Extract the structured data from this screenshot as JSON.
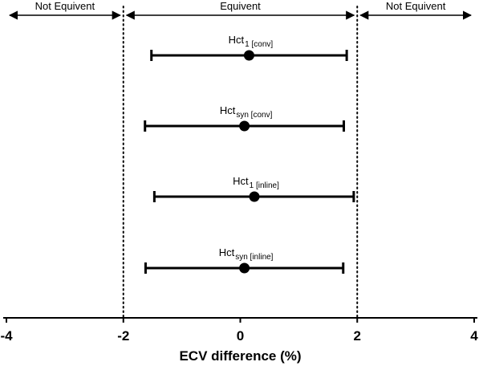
{
  "chart_data": {
    "type": "forest",
    "xlabel": "ECV difference (%)",
    "xlim": [
      -4,
      4
    ],
    "xticks": [
      -4,
      -2,
      0,
      2,
      4
    ],
    "equivalence_margins": [
      -2,
      2
    ],
    "regions": [
      {
        "label": "Not Equivent",
        "from": -4,
        "to": -2
      },
      {
        "label": "Equivent",
        "from": -2,
        "to": 2
      },
      {
        "label": "Not Equivent",
        "from": 2,
        "to": 4
      }
    ],
    "series": [
      {
        "main": "Hct",
        "sub": "1 [conv]",
        "estimate": 0.15,
        "lower": -1.52,
        "upper": 1.82
      },
      {
        "main": "Hct",
        "sub": "syn [conv]",
        "estimate": 0.07,
        "lower": -1.63,
        "upper": 1.77
      },
      {
        "main": "Hct",
        "sub": "1 [inline]",
        "estimate": 0.24,
        "lower": -1.47,
        "upper": 1.94
      },
      {
        "main": "Hct",
        "sub": "syn [inline]",
        "estimate": 0.07,
        "lower": -1.62,
        "upper": 1.76
      }
    ],
    "grid": false,
    "colors": {
      "line": "#000000",
      "background": "#ffffff"
    }
  }
}
